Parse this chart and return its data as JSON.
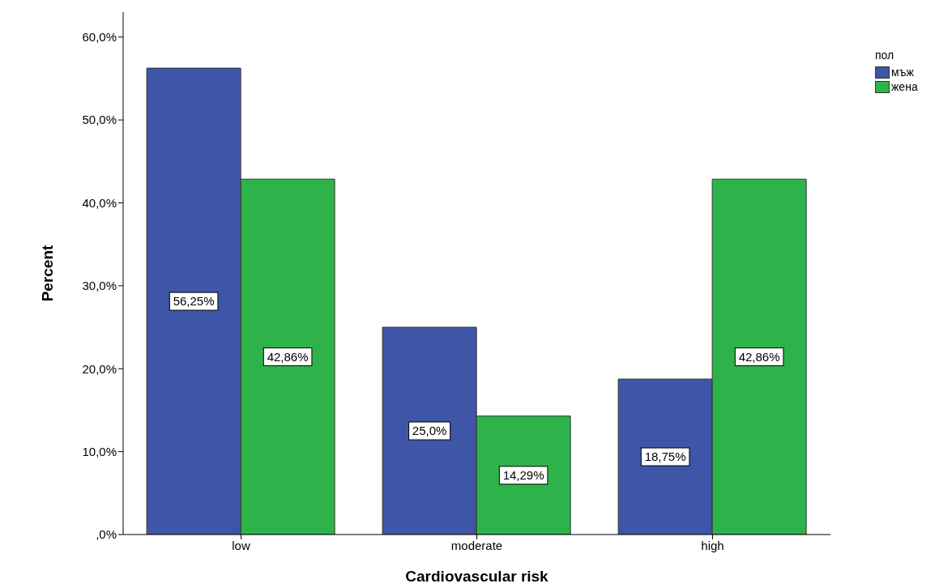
{
  "chart_data": {
    "type": "bar",
    "xlabel": "Cardiovascular risk",
    "ylabel": "Percent",
    "legend_title": "пол",
    "legend": "top right",
    "categories": [
      "low",
      "moderate",
      "high"
    ],
    "series": [
      {
        "name": "мъж",
        "color": "#3f56a8",
        "values": [
          56.25,
          25.0,
          18.75
        ],
        "value_labels": [
          "56,25%",
          "25,0%",
          "18,75%"
        ]
      },
      {
        "name": "жена",
        "color": "#2db34a",
        "values": [
          42.86,
          14.29,
          42.86
        ],
        "value_labels": [
          "42,86%",
          "14,29%",
          "42,86%"
        ]
      }
    ],
    "ylim": [
      0,
      63
    ],
    "yticks": [
      {
        "value": 0,
        "label": ",0%"
      },
      {
        "value": 10,
        "label": "10,0%"
      },
      {
        "value": 20,
        "label": "20,0%"
      },
      {
        "value": 30,
        "label": "30,0%"
      },
      {
        "value": 40,
        "label": "40,0%"
      },
      {
        "value": 50,
        "label": "50,0%"
      },
      {
        "value": 60,
        "label": "60,0%"
      }
    ]
  }
}
